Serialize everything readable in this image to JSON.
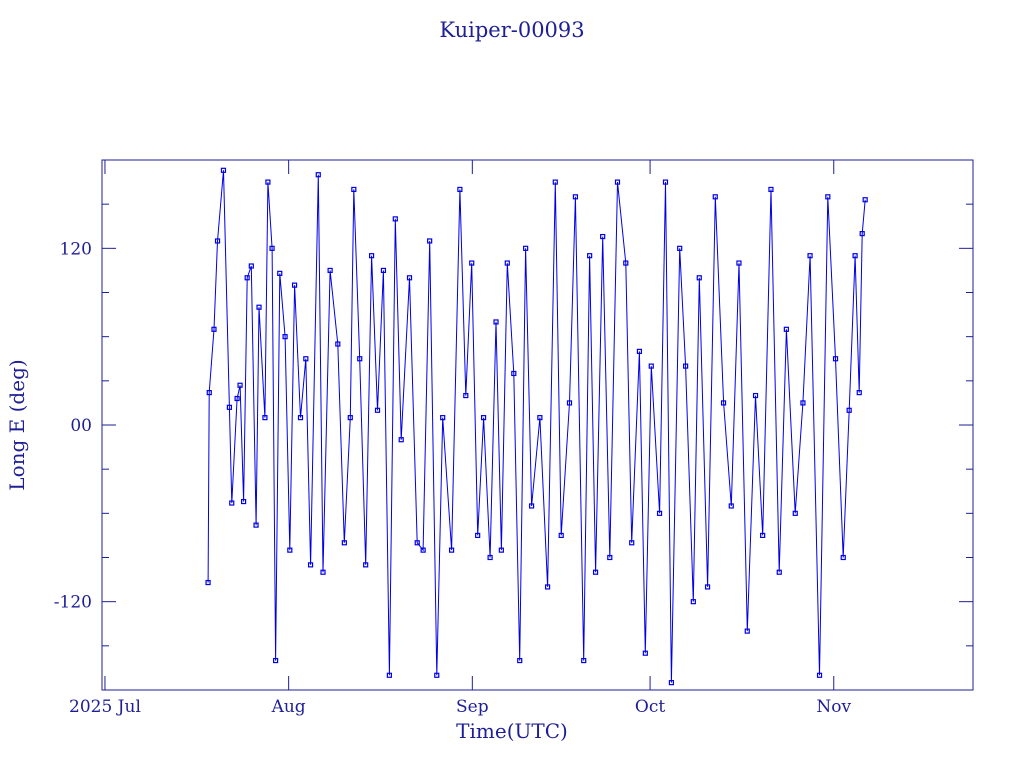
{
  "chart_data": {
    "type": "line",
    "title": "Kuiper-00093",
    "x_label": "Time(UTC)",
    "y_label": "Long E (deg)",
    "color": "#0000e6",
    "xlim": [
      -0.5,
      146.5
    ],
    "xticks": [
      {
        "value": 0,
        "label": "2025 Jul"
      },
      {
        "value": 31,
        "label": "Aug"
      },
      {
        "value": 62,
        "label": "Sep"
      },
      {
        "value": 92,
        "label": "Oct"
      },
      {
        "value": 123,
        "label": "Nov"
      }
    ],
    "ylim": [
      -180,
      180
    ],
    "yticks": [
      -120,
      {
        "value": 0,
        "label": "00"
      },
      120
    ],
    "y_minor_ticks": [
      -150,
      -90,
      -60,
      -30,
      30,
      60,
      90,
      150
    ],
    "x": [
      17.4,
      17.6,
      18.4,
      19,
      20,
      21,
      21.4,
      22.3,
      22.8,
      23.4,
      24,
      24.7,
      25.5,
      26,
      27,
      27.5,
      28.2,
      28.8,
      29.5,
      30.4,
      31.2,
      32,
      33,
      33.9,
      34.7,
      36,
      36.8,
      38,
      39.3,
      40.4,
      41.4,
      42,
      43,
      44,
      45,
      46,
      47,
      48,
      49,
      50,
      51.4,
      52.7,
      53.7,
      54.8,
      56,
      57,
      58.5,
      59.9,
      60.9,
      61.9,
      62.9,
      63.9,
      65,
      66,
      66.9,
      67.9,
      69,
      70,
      71,
      72,
      73.4,
      74.7,
      76,
      77,
      78.4,
      79.4,
      80.8,
      81.8,
      82.8,
      84,
      85.2,
      86.5,
      87.9,
      88.9,
      90.2,
      91.2,
      92.2,
      93.6,
      94.6,
      95.6,
      97,
      98,
      99.3,
      100.3,
      101.7,
      103,
      104.4,
      105.7,
      107,
      108.4,
      109.8,
      111,
      112.4,
      113.8,
      115,
      116.5,
      117.8,
      119,
      120.6,
      122,
      123.3,
      124.6,
      125.6,
      126.6,
      127.3,
      127.8,
      128.3
    ],
    "values": [
      -107,
      22,
      65,
      125,
      173,
      12,
      -53,
      18,
      27,
      -52,
      100,
      108,
      -68,
      80,
      5,
      165,
      120,
      -160,
      103,
      60,
      -85,
      95,
      5,
      45,
      -95,
      170,
      -100,
      105,
      55,
      -80,
      5,
      160,
      45,
      -95,
      115,
      10,
      105,
      -170,
      140,
      -10,
      100,
      -80,
      -85,
      125,
      -170,
      5,
      -85,
      160,
      20,
      110,
      -75,
      5,
      -90,
      70,
      -85,
      110,
      35,
      -160,
      120,
      -55,
      5,
      -110,
      165,
      -75,
      15,
      155,
      -160,
      115,
      -100,
      128,
      -90,
      165,
      110,
      -80,
      50,
      -155,
      40,
      -60,
      165,
      -175,
      120,
      40,
      -120,
      100,
      -110,
      155,
      15,
      -55,
      110,
      -140,
      20,
      -75,
      160,
      -100,
      65,
      -60,
      15,
      115,
      -170,
      155,
      45,
      -90,
      10,
      115,
      22,
      130,
      153
    ]
  }
}
